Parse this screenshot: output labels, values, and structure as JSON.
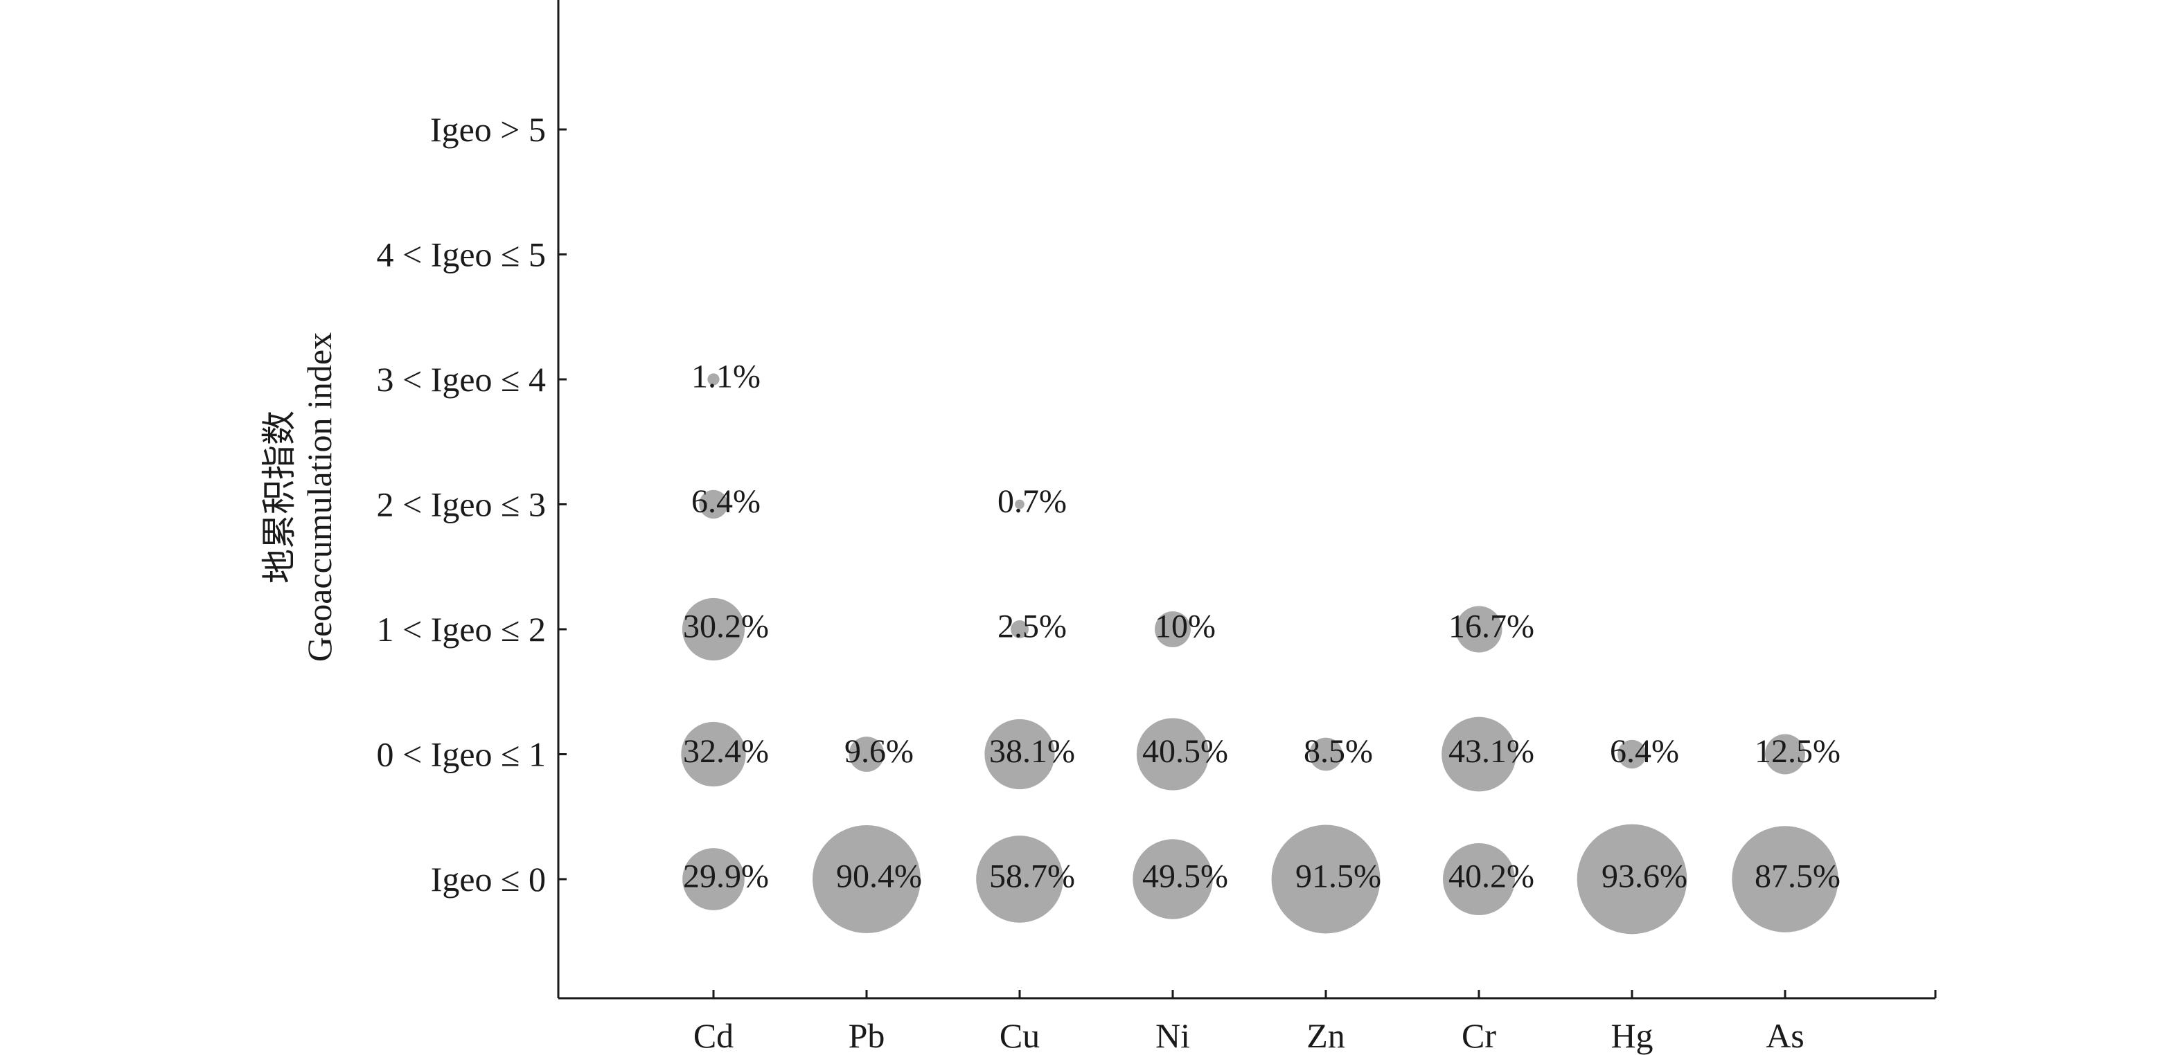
{
  "chart_data": {
    "type": "scatter",
    "title": "",
    "xlabel": "",
    "ylabel_lines": [
      "地累积指数",
      "Geoaccumulation index"
    ],
    "categories": [
      "Cd",
      "Pb",
      "Cu",
      "Ni",
      "Zn",
      "Cr",
      "Hg",
      "As"
    ],
    "levels": [
      "Igeo ≤  0",
      "0 < Igeo ≤  1",
      "1 < Igeo ≤  2",
      "2 < Igeo ≤  3",
      "3 < Igeo ≤  4",
      "4 < Igeo ≤ 5",
      "Igeo > 5"
    ],
    "bubble_color": "#aaaaaa",
    "grid": false,
    "points": [
      {
        "category": "Cd",
        "level": 0,
        "value": 29.9,
        "label": "29.9%"
      },
      {
        "category": "Cd",
        "level": 1,
        "value": 32.4,
        "label": "32.4%"
      },
      {
        "category": "Cd",
        "level": 2,
        "value": 30.2,
        "label": "30.2%"
      },
      {
        "category": "Cd",
        "level": 3,
        "value": 6.4,
        "label": "6.4%"
      },
      {
        "category": "Cd",
        "level": 4,
        "value": 1.1,
        "label": "1.1%"
      },
      {
        "category": "Pb",
        "level": 0,
        "value": 90.4,
        "label": "90.4%"
      },
      {
        "category": "Pb",
        "level": 1,
        "value": 9.6,
        "label": "9.6%"
      },
      {
        "category": "Cu",
        "level": 0,
        "value": 58.7,
        "label": "58.7%"
      },
      {
        "category": "Cu",
        "level": 1,
        "value": 38.1,
        "label": "38.1%"
      },
      {
        "category": "Cu",
        "level": 2,
        "value": 2.5,
        "label": "2.5%"
      },
      {
        "category": "Cu",
        "level": 3,
        "value": 0.7,
        "label": "0.7%"
      },
      {
        "category": "Ni",
        "level": 0,
        "value": 49.5,
        "label": "49.5%"
      },
      {
        "category": "Ni",
        "level": 1,
        "value": 40.5,
        "label": "40.5%"
      },
      {
        "category": "Ni",
        "level": 2,
        "value": 10,
        "label": "10%"
      },
      {
        "category": "Zn",
        "level": 0,
        "value": 91.5,
        "label": "91.5%"
      },
      {
        "category": "Zn",
        "level": 1,
        "value": 8.5,
        "label": "8.5%"
      },
      {
        "category": "Cr",
        "level": 0,
        "value": 40.2,
        "label": "40.2%"
      },
      {
        "category": "Cr",
        "level": 1,
        "value": 43.1,
        "label": "43.1%"
      },
      {
        "category": "Cr",
        "level": 2,
        "value": 16.7,
        "label": "16.7%"
      },
      {
        "category": "Hg",
        "level": 0,
        "value": 93.6,
        "label": "93.6%"
      },
      {
        "category": "Hg",
        "level": 1,
        "value": 6.4,
        "label": "6.4%"
      },
      {
        "category": "As",
        "level": 0,
        "value": 87.5,
        "label": "87.5%"
      },
      {
        "category": "As",
        "level": 1,
        "value": 12.5,
        "label": "12.5%"
      }
    ]
  }
}
